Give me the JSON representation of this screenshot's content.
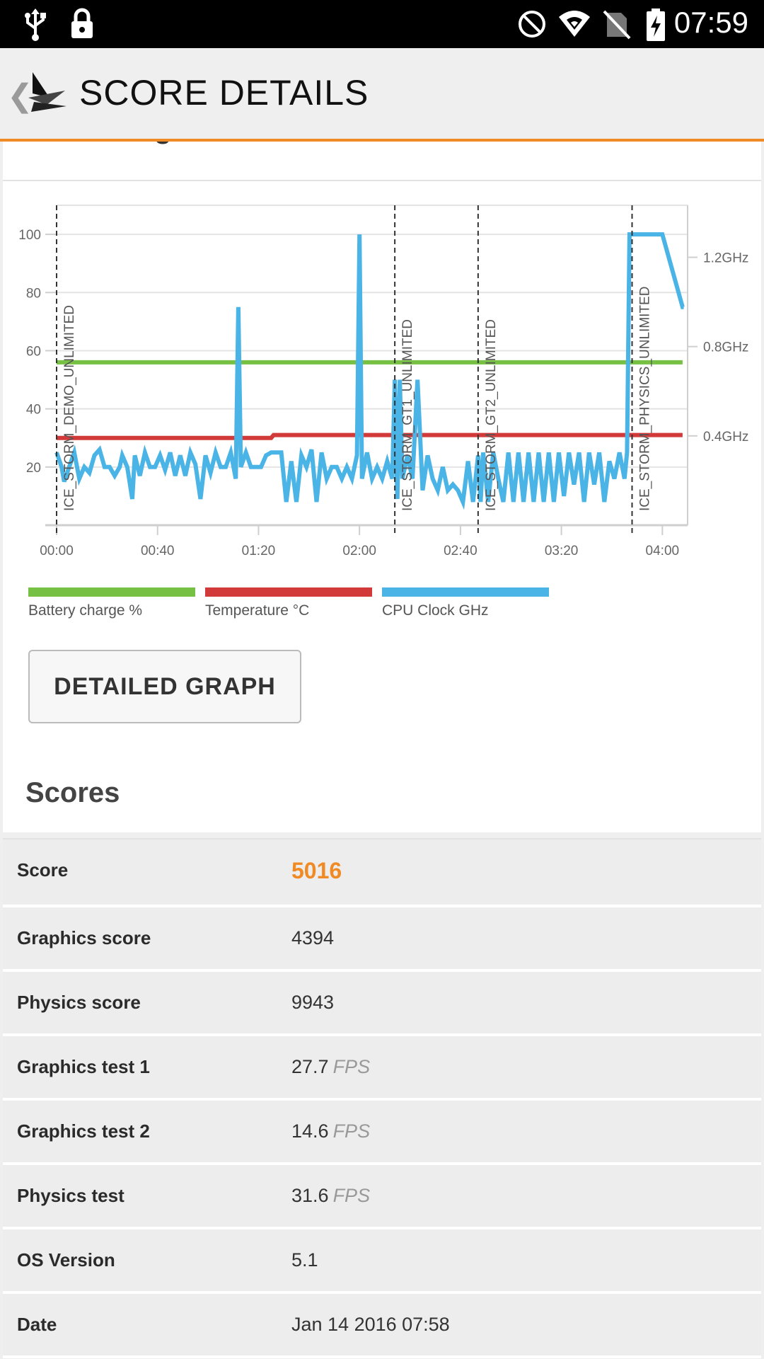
{
  "status_bar": {
    "time": "07:59",
    "left_icons": [
      "usb-icon",
      "lock-icon"
    ],
    "right_icons": [
      "do-not-disturb-icon",
      "wifi-icon",
      "no-sim-icon",
      "battery-charging-icon"
    ]
  },
  "app_bar": {
    "title": "SCORE DETAILS",
    "back_icon": "chevron-left-icon",
    "logo_icon": "3dmark-logo-icon"
  },
  "monitoring": {
    "heading": "Monitoring data",
    "detailed_graph_label": "DETAILED GRAPH"
  },
  "chart_data": {
    "type": "line",
    "title": "",
    "xlabel": "",
    "ylabel": "",
    "x_tick_labels": [
      "00:00",
      "00:40",
      "01:20",
      "02:00",
      "02:40",
      "03:20",
      "04:00"
    ],
    "x_ticks_seconds": [
      0,
      40,
      80,
      120,
      160,
      200,
      240
    ],
    "xlim": [
      0,
      250
    ],
    "ylim_left": [
      0,
      110
    ],
    "y_tick_labels_left": [
      "20",
      "40",
      "60",
      "80",
      "100"
    ],
    "y_ticks_left": [
      20,
      40,
      60,
      80,
      100
    ],
    "y_tick_labels_right": [
      "0.4GHz",
      "0.8GHz",
      "1.2GHz"
    ],
    "y_ticks_right_ghz": [
      0.4,
      0.8,
      1.2
    ],
    "ylim_right_ghz": [
      0,
      1.433
    ],
    "grid": true,
    "legend_position": "bottom",
    "markers": [
      {
        "label": "ICE_STORM_DEMO_UNLIMITED",
        "x": 0
      },
      {
        "label": "ICE_STORM_GT1_UNLIMITED",
        "x": 134
      },
      {
        "label": "ICE_STORM_GT2_UNLIMITED",
        "x": 167
      },
      {
        "label": "ICE_STORM_PHYSICS_UNLIMITED",
        "x": 228
      }
    ],
    "series": [
      {
        "name": "Battery charge %",
        "color": "#76c043",
        "axis": "left",
        "x": [
          0,
          248
        ],
        "values": [
          56,
          56
        ]
      },
      {
        "name": "Temperature °C",
        "color": "#d23a3a",
        "axis": "left",
        "x": [
          0,
          85,
          86,
          248
        ],
        "values": [
          30,
          30,
          31,
          31
        ]
      },
      {
        "name": "CPU Clock GHz",
        "color": "#4ab4e6",
        "axis": "left",
        "x": [
          0,
          2,
          3,
          5,
          7,
          9,
          11,
          13,
          15,
          17,
          19,
          21,
          23,
          25,
          26,
          28,
          30,
          31,
          33,
          35,
          37,
          39,
          41,
          43,
          45,
          47,
          49,
          51,
          53,
          55,
          57,
          59,
          61,
          63,
          65,
          67,
          69,
          71,
          72,
          73,
          75,
          77,
          79,
          81,
          83,
          85,
          87,
          89,
          91,
          93,
          95,
          97,
          99,
          101,
          103,
          105,
          107,
          109,
          111,
          113,
          115,
          117,
          119,
          120,
          121,
          123,
          125,
          127,
          129,
          131,
          133,
          134,
          135,
          136,
          137,
          139,
          141,
          143,
          145,
          147,
          149,
          151,
          153,
          155,
          157,
          159,
          161,
          163,
          165,
          167,
          168,
          169,
          171,
          173,
          175,
          177,
          179,
          181,
          183,
          185,
          187,
          189,
          191,
          193,
          195,
          197,
          199,
          201,
          203,
          205,
          207,
          209,
          211,
          213,
          215,
          217,
          219,
          221,
          223,
          225,
          226,
          227,
          228,
          229,
          231,
          240,
          248,
          248.5
        ],
        "values": [
          25,
          20,
          15,
          20,
          25,
          16,
          20,
          18,
          24,
          26,
          20,
          20,
          17,
          20,
          24,
          20,
          9,
          24,
          17,
          25,
          20,
          20,
          24,
          19,
          25,
          17,
          24,
          17,
          25,
          21,
          9,
          24,
          18,
          25,
          20,
          20,
          25,
          16,
          75,
          20,
          25,
          20,
          20,
          20,
          24,
          25,
          25,
          25,
          8,
          22,
          8,
          24,
          20,
          26,
          8,
          25,
          16,
          20,
          20,
          16,
          20,
          16,
          24,
          100,
          16,
          25,
          16,
          20,
          16,
          22,
          16,
          50,
          9,
          50,
          16,
          24,
          16,
          50,
          12,
          24,
          16,
          12,
          20,
          12,
          14,
          12,
          8,
          22,
          8,
          24,
          8,
          25,
          8,
          25,
          16,
          8,
          25,
          8,
          25,
          8,
          25,
          8,
          25,
          8,
          25,
          8,
          25,
          10,
          25,
          14,
          25,
          8,
          25,
          14,
          25,
          8,
          22,
          16,
          25,
          16,
          25,
          100,
          100,
          100,
          100,
          100,
          75,
          75
        ]
      }
    ]
  },
  "scores": {
    "heading": "Scores",
    "rows": [
      {
        "label": "Score",
        "value": "5016",
        "unit": ""
      },
      {
        "label": "Graphics score",
        "value": "4394",
        "unit": ""
      },
      {
        "label": "Physics score",
        "value": "9943",
        "unit": ""
      },
      {
        "label": "Graphics test 1",
        "value": "27.7",
        "unit": "FPS"
      },
      {
        "label": "Graphics test 2",
        "value": "14.6",
        "unit": "FPS"
      },
      {
        "label": "Physics test",
        "value": "31.6",
        "unit": "FPS"
      },
      {
        "label": "OS Version",
        "value": "5.1",
        "unit": ""
      },
      {
        "label": "Date",
        "value": "Jan 14 2016 07:58",
        "unit": ""
      }
    ]
  },
  "colors": {
    "accent": "#f08a24",
    "battery": "#76c043",
    "temperature": "#d23a3a",
    "cpu": "#4ab4e6"
  }
}
